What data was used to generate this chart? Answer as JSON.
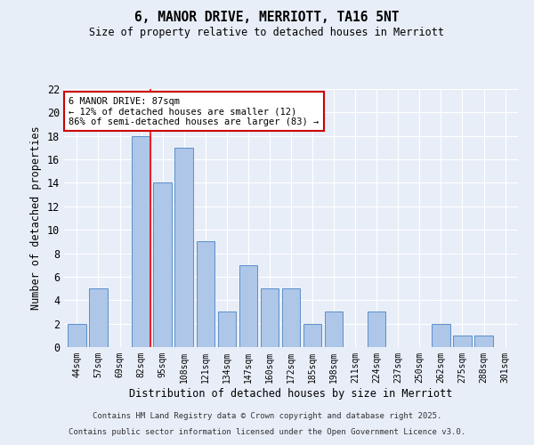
{
  "title": "6, MANOR DRIVE, MERRIOTT, TA16 5NT",
  "subtitle": "Size of property relative to detached houses in Merriott",
  "xlabel": "Distribution of detached houses by size in Merriott",
  "ylabel": "Number of detached properties",
  "categories": [
    "44sqm",
    "57sqm",
    "69sqm",
    "82sqm",
    "95sqm",
    "108sqm",
    "121sqm",
    "134sqm",
    "147sqm",
    "160sqm",
    "172sqm",
    "185sqm",
    "198sqm",
    "211sqm",
    "224sqm",
    "237sqm",
    "250sqm",
    "262sqm",
    "275sqm",
    "288sqm",
    "301sqm"
  ],
  "values": [
    2,
    5,
    0,
    18,
    14,
    17,
    9,
    3,
    7,
    5,
    5,
    2,
    3,
    0,
    3,
    0,
    0,
    2,
    1,
    1,
    0
  ],
  "bar_color": "#aec6e8",
  "bar_edge_color": "#5b8fc9",
  "background_color": "#e8eef8",
  "grid_color": "#ffffff",
  "red_line_x": 3.43,
  "annotation_text": "6 MANOR DRIVE: 87sqm\n← 12% of detached houses are smaller (12)\n86% of semi-detached houses are larger (83) →",
  "annotation_box_color": "#ffffff",
  "annotation_box_edge": "#cc0000",
  "ylim": [
    0,
    22
  ],
  "yticks": [
    0,
    2,
    4,
    6,
    8,
    10,
    12,
    14,
    16,
    18,
    20,
    22
  ],
  "footer_line1": "Contains HM Land Registry data © Crown copyright and database right 2025.",
  "footer_line2": "Contains public sector information licensed under the Open Government Licence v3.0."
}
